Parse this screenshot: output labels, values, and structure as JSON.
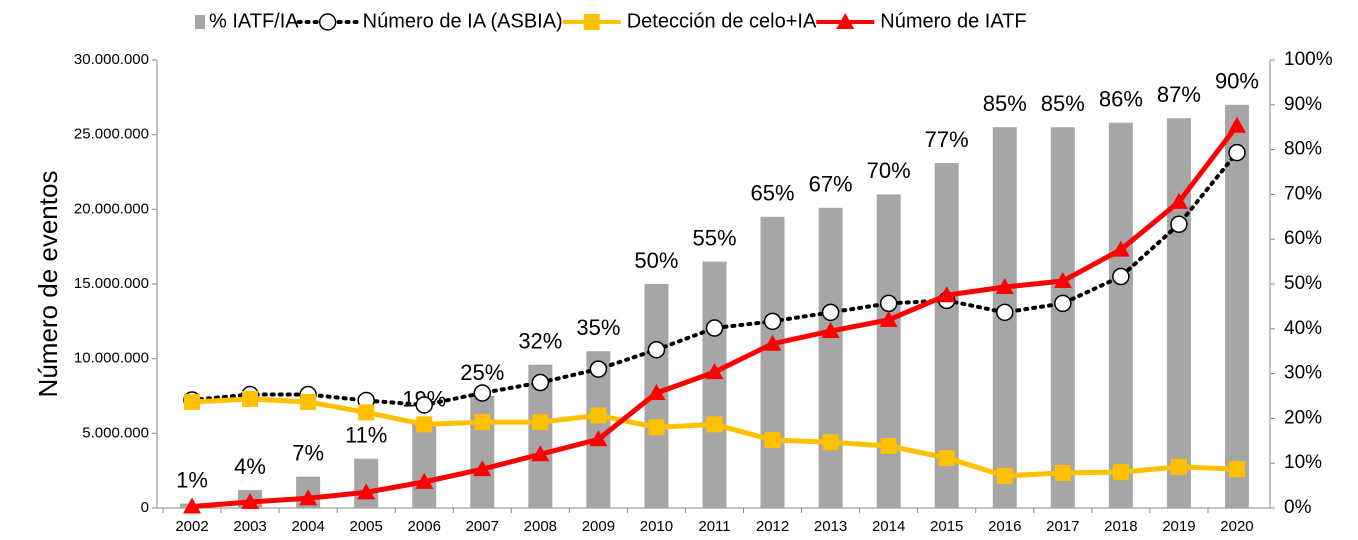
{
  "chart_data": {
    "type": "bar-line",
    "y_label": "Número de eventos",
    "categories": [
      "2002",
      "2003",
      "2004",
      "2005",
      "2006",
      "2007",
      "2008",
      "2009",
      "2010",
      "2011",
      "2012",
      "2013",
      "2014",
      "2015",
      "2016",
      "2017",
      "2018",
      "2019",
      "2020"
    ],
    "ylim": [
      0,
      30000000
    ],
    "yticks": [
      0,
      {
        "value": 5000000,
        "label": "5.000.000"
      },
      {
        "value": 10000000,
        "label": "10.000.000"
      },
      {
        "value": 15000000,
        "label": "15.000.000"
      },
      {
        "value": 20000000,
        "label": "20.000.000"
      },
      {
        "value": 25000000,
        "label": "25.000.000"
      },
      {
        "value": 30000000,
        "label": "30.000.000"
      }
    ],
    "y2lim": [
      0,
      100
    ],
    "y2ticks": [
      {
        "value": 0,
        "label": "0%"
      },
      {
        "value": 10,
        "label": "10%"
      },
      {
        "value": 20,
        "label": "20%"
      },
      {
        "value": 30,
        "label": "30%"
      },
      {
        "value": 40,
        "label": "40%"
      },
      {
        "value": 50,
        "label": "50%"
      },
      {
        "value": 60,
        "label": "60%"
      },
      {
        "value": 70,
        "label": "70%"
      },
      {
        "value": 80,
        "label": "80%"
      },
      {
        "value": 90,
        "label": "90%"
      },
      {
        "value": 100,
        "label": "100%"
      }
    ],
    "series": [
      {
        "name": "% IATF/IA",
        "type": "bar",
        "axis": "y2",
        "color": "#a6a6a6",
        "values": [
          1,
          4,
          7,
          11,
          19,
          25,
          32,
          35,
          50,
          55,
          65,
          67,
          70,
          77,
          85,
          85,
          86,
          87,
          90
        ],
        "value_labels": [
          "1%",
          "4%",
          "7%",
          "11%",
          "19%",
          "25%",
          "32%",
          "35%",
          "50%",
          "55%",
          "65%",
          "67%",
          "70%",
          "77%",
          "85%",
          "85%",
          "86%",
          "87%",
          "90%"
        ]
      },
      {
        "name": "Número de IA (ASBIA)",
        "type": "line",
        "color": "#000000",
        "marker": "circle",
        "dash": true,
        "values": [
          7230000,
          7600000,
          7600000,
          7200000,
          6900000,
          7700000,
          8400000,
          9300000,
          10600000,
          12050000,
          12500000,
          13100000,
          13700000,
          13900000,
          13100000,
          13700000,
          15500000,
          19000000,
          23800000
        ]
      },
      {
        "name": "Detección de celo+IA",
        "type": "line",
        "color": "#ffc000",
        "marker": "square",
        "values": [
          7100000,
          7300000,
          7100000,
          6400000,
          5600000,
          5750000,
          5750000,
          6200000,
          5400000,
          5600000,
          4550000,
          4400000,
          4150000,
          3350000,
          2150000,
          2350000,
          2400000,
          2750000,
          2600000
        ]
      },
      {
        "name": "Número de IATF",
        "type": "line",
        "color": "#ff0000",
        "marker": "triangle",
        "values": [
          100000,
          400000,
          650000,
          1050000,
          1750000,
          2600000,
          3600000,
          4600000,
          7700000,
          9100000,
          11000000,
          11850000,
          12600000,
          14250000,
          14800000,
          15200000,
          17300000,
          20500000,
          25600000
        ]
      }
    ]
  }
}
